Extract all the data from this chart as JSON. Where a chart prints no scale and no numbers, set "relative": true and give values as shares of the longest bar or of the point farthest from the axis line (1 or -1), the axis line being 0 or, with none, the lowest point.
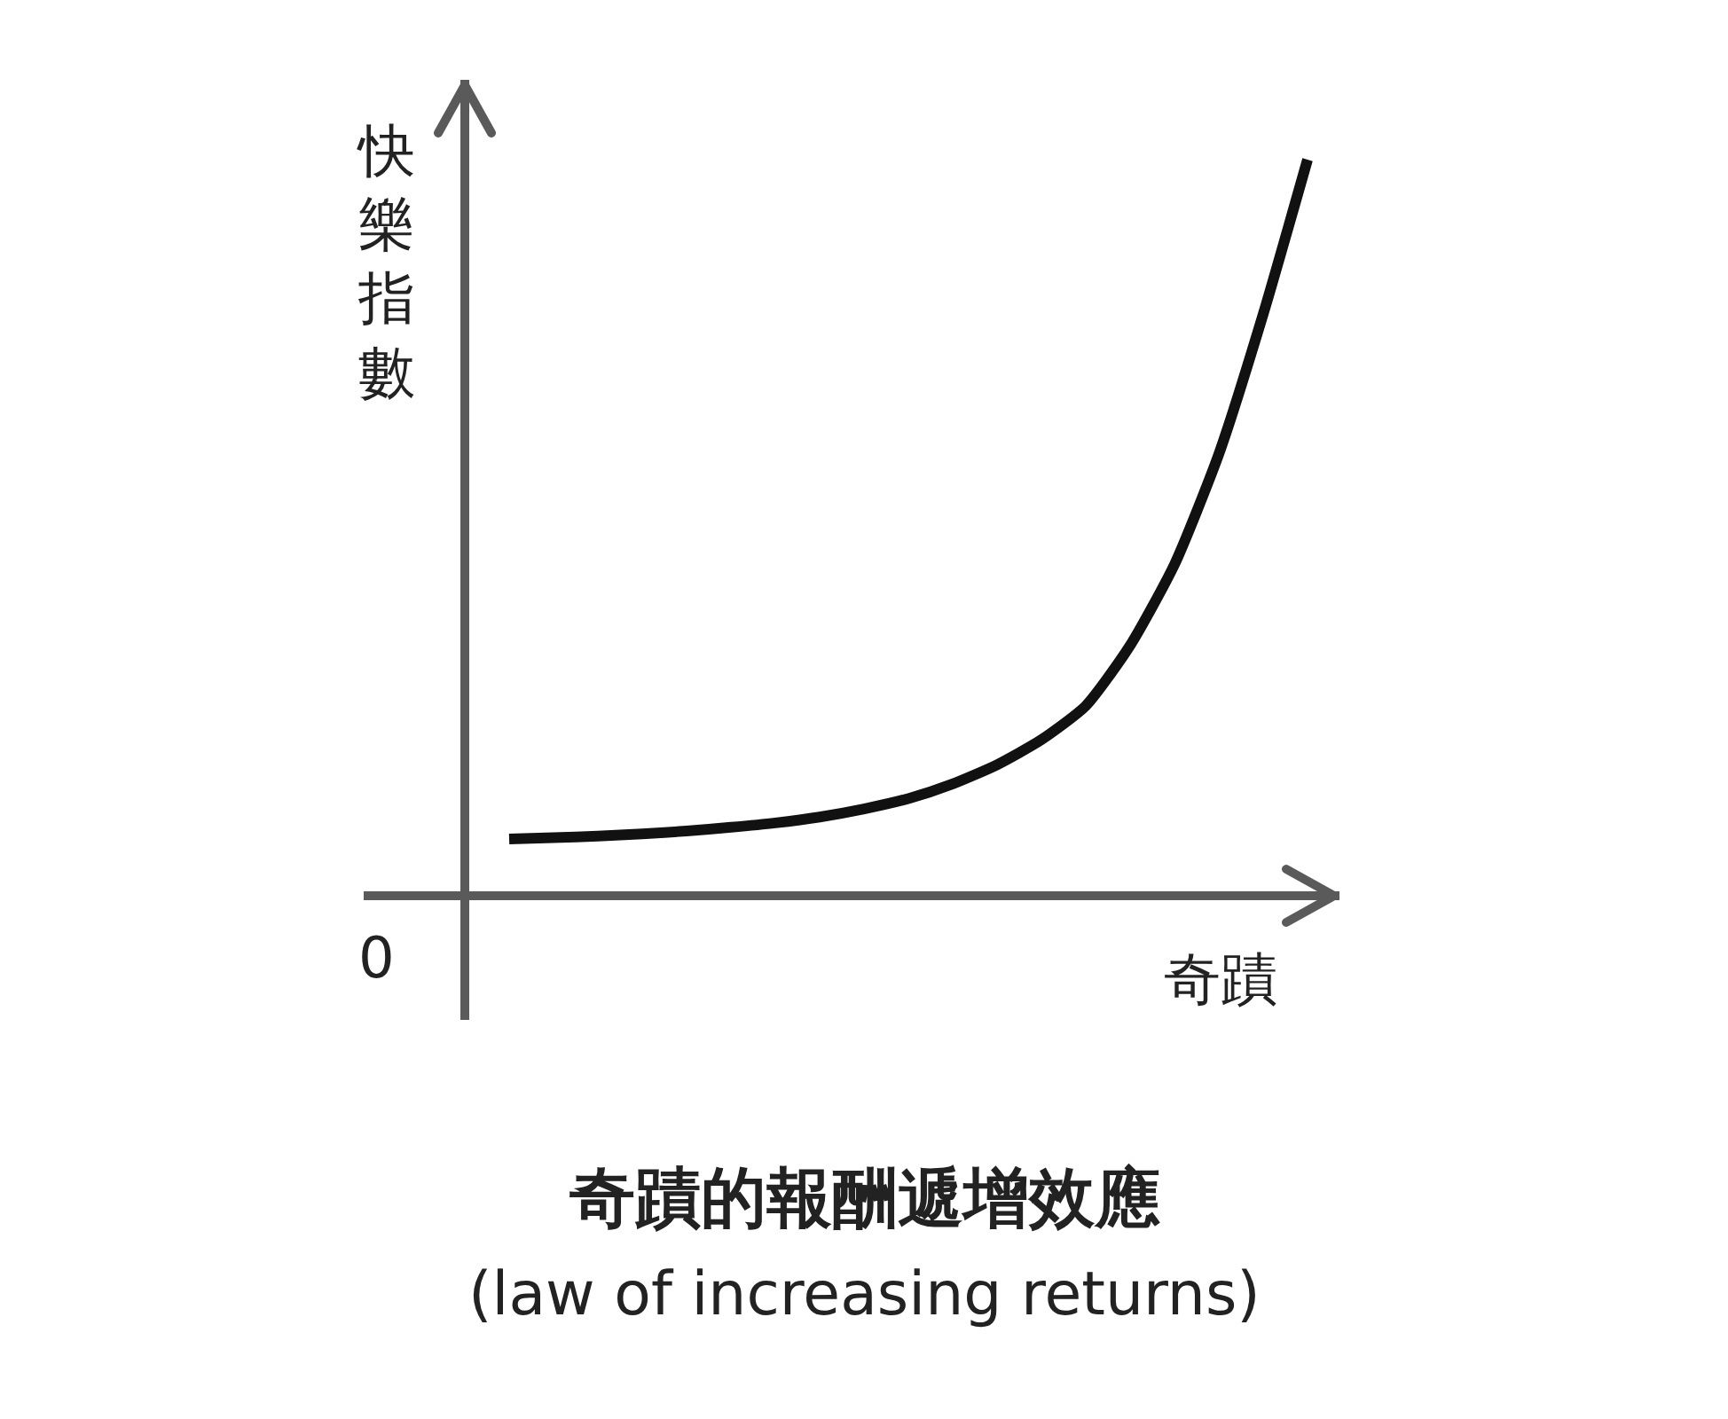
{
  "chart_data": {
    "type": "line",
    "title": "奇蹟的報酬遞增效應",
    "subtitle": "(law of increasing returns)",
    "xlabel": "奇蹟",
    "ylabel": "快樂指數",
    "annotations": [
      "0"
    ],
    "relative": true,
    "color": "#111111",
    "categories": [
      null,
      null,
      null,
      null,
      null,
      null,
      null,
      null,
      null,
      null,
      null,
      null,
      null,
      null,
      null,
      null,
      null,
      null,
      null
    ],
    "values": [
      0.077,
      0.079,
      0.081,
      0.084,
      0.088,
      0.093,
      0.099,
      0.107,
      0.118,
      0.132,
      0.152,
      0.178,
      0.212,
      0.258,
      0.34,
      0.45,
      0.6,
      0.79,
      1.0
    ]
  }
}
